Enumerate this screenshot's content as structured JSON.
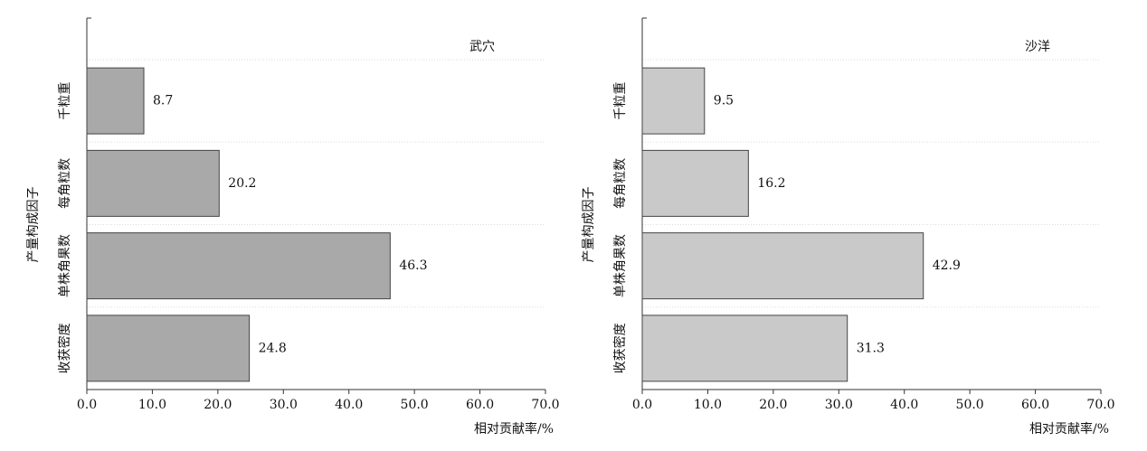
{
  "chart_data": [
    {
      "type": "bar",
      "orientation": "horizontal",
      "title": "武穴",
      "ylabel": "产量构成因子",
      "xlabel": "相对贡献率/%",
      "categories": [
        "千粒重",
        "每角粒数",
        "单株角果数",
        "收获密度"
      ],
      "values": [
        8.7,
        20.2,
        46.3,
        24.8
      ],
      "color": "#a9a9a9",
      "xlim": [
        0,
        70
      ],
      "xticks": [
        {
          "value": 0,
          "label": "0.0"
        },
        {
          "value": 10,
          "label": "10.0"
        },
        {
          "value": 20,
          "label": "20.0"
        },
        {
          "value": 30,
          "label": "30.0"
        },
        {
          "value": 40,
          "label": "40.0"
        },
        {
          "value": 50,
          "label": "50.0"
        },
        {
          "value": 60,
          "label": "60.0"
        },
        {
          "value": 70,
          "label": "70.0"
        }
      ]
    },
    {
      "type": "bar",
      "orientation": "horizontal",
      "title": "沙洋",
      "ylabel": "产量构成因子",
      "xlabel": "相对贡献率/%",
      "categories": [
        "千粒重",
        "每角粒数",
        "单株角果数",
        "收获密度"
      ],
      "values": [
        9.5,
        16.2,
        42.9,
        31.3
      ],
      "color": "#c9c9c9",
      "xlim": [
        0,
        70
      ],
      "xticks": [
        {
          "value": 0,
          "label": "0.0"
        },
        {
          "value": 10,
          "label": "10.0"
        },
        {
          "value": 20,
          "label": "20.0"
        },
        {
          "value": 30,
          "label": "30.0"
        },
        {
          "value": 40,
          "label": "40.0"
        },
        {
          "value": 50,
          "label": "50.0"
        },
        {
          "value": 60,
          "label": "60.0"
        },
        {
          "value": 70,
          "label": "70.0"
        }
      ]
    }
  ]
}
